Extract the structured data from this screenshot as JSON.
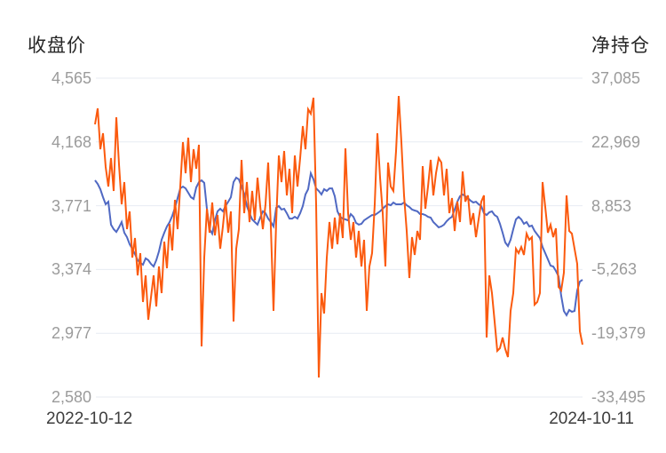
{
  "colors": {
    "price_line": "#5069c3",
    "net_position_line": "#fb5a0e",
    "grid_line": "#e7ebf2",
    "tick_text": "#9b9b9b",
    "date_text": "#3d3d3d",
    "title_text": "#262626",
    "background": "#ffffff"
  },
  "chart_data": {
    "type": "line",
    "legend": "none",
    "grid": "horizontal-only",
    "left_axis": {
      "title": "收盘价",
      "max": 4565,
      "min": 2580,
      "tick_labels": [
        "4,565",
        "4,168",
        "3,771",
        "3,374",
        "2,977",
        "2,580"
      ]
    },
    "right_axis": {
      "title": "净持仓",
      "max": 37085,
      "min": -33495,
      "tick_labels": [
        "37,085",
        "22,969",
        "8,853",
        "-5,263",
        "-19,379",
        "-33,495"
      ]
    },
    "x_axis": {
      "start": "2022-10-12",
      "end": "2024-10-11"
    },
    "series": [
      {
        "name": "收盘价",
        "axis": "left",
        "color_key": "price_line",
        "values": [
          3929,
          3907,
          3874,
          3824,
          3780,
          3796,
          3653,
          3625,
          3608,
          3636,
          3669,
          3603,
          3575,
          3531,
          3503,
          3470,
          3432,
          3415,
          3404,
          3443,
          3432,
          3409,
          3393,
          3432,
          3487,
          3559,
          3603,
          3642,
          3669,
          3708,
          3758,
          3818,
          3879,
          3890,
          3879,
          3852,
          3824,
          3813,
          3885,
          3918,
          3929,
          3913,
          3752,
          3625,
          3597,
          3680,
          3736,
          3752,
          3736,
          3769,
          3796,
          3824,
          3918,
          3946,
          3935,
          3890,
          3846,
          3769,
          3724,
          3686,
          3669,
          3653,
          3697,
          3736,
          3724,
          3691,
          3669,
          3642,
          3758,
          3769,
          3747,
          3752,
          3724,
          3691,
          3691,
          3702,
          3691,
          3724,
          3769,
          3841,
          3874,
          3973,
          3935,
          3879,
          3863,
          3841,
          3874,
          3863,
          3879,
          3879,
          3830,
          3736,
          3702,
          3691,
          3686,
          3680,
          3719,
          3702,
          3664,
          3653,
          3658,
          3680,
          3691,
          3702,
          3713,
          3713,
          3724,
          3736,
          3752,
          3769,
          3780,
          3774,
          3791,
          3780,
          3780,
          3780,
          3791,
          3774,
          3763,
          3747,
          3741,
          3736,
          3719,
          3719,
          3713,
          3702,
          3697,
          3669,
          3653,
          3636,
          3642,
          3653,
          3675,
          3691,
          3702,
          3747,
          3796,
          3830,
          3841,
          3830,
          3818,
          3802,
          3791,
          3796,
          3780,
          3769,
          3724,
          3713,
          3730,
          3736,
          3713,
          3702,
          3658,
          3603,
          3542,
          3520,
          3559,
          3625,
          3686,
          3702,
          3686,
          3658,
          3669,
          3642,
          3647,
          3614,
          3592,
          3570,
          3514,
          3476,
          3437,
          3398,
          3393,
          3365,
          3332,
          3210,
          3116,
          3089,
          3122,
          3111,
          3116,
          3243,
          3299,
          3310
        ]
      },
      {
        "name": "净持仓",
        "axis": "right",
        "color_key": "net_position_line",
        "values": [
          26857,
          30400,
          21357,
          24896,
          17425,
          13100,
          19391,
          12117,
          28434,
          18015,
          9167,
          14083,
          3662,
          7594,
          -2630,
          1696,
          -6563,
          -1647,
          -12461,
          -6563,
          -16393,
          -11478,
          -6563,
          -13444,
          -4597,
          -10495,
          909,
          -4990,
          4842,
          -1057,
          10150,
          3662,
          13100,
          22930,
          16049,
          23913,
          14083,
          21357,
          17032,
          22340,
          -22291,
          -2630,
          8184,
          2876,
          9560,
          2286,
          6807,
          -664,
          4252,
          10150,
          2876,
          7594,
          -16786,
          -664,
          3662,
          18998,
          7200,
          14083,
          5235,
          12117,
          5628,
          15066,
          8774,
          3662,
          9167,
          18408,
          4252,
          -14427,
          5235,
          19981,
          14083,
          20964,
          11133,
          17032,
          7200,
          19981,
          13100,
          19391,
          26464,
          21357,
          30204,
          29221,
          32760,
          9167,
          -29172,
          -10495,
          -15017,
          -2630,
          5235,
          -664,
          6218,
          319,
          7200,
          1696,
          21554,
          7200,
          1302,
          5235,
          -2630,
          3269,
          -4597,
          1302,
          -14427,
          -4597,
          -1647,
          9167,
          24896,
          15066,
          7200,
          -4597,
          18408,
          13100,
          12117,
          20964,
          33153,
          22930,
          11133,
          3269,
          -7153,
          1892,
          -2040,
          3269,
          1302,
          17622,
          8184,
          13100,
          18998,
          11133,
          16049,
          19391,
          18408,
          11133,
          17032,
          7200,
          10543,
          3269,
          9757,
          5235,
          16442,
          9757,
          11133,
          4645,
          7200,
          1892,
          5825,
          9757,
          11133,
          -20325,
          -6563,
          -10495,
          -16786,
          -23274,
          -22684,
          -20325,
          -22881,
          -24650,
          -14427,
          -10495,
          -664,
          -1647,
          -271,
          -2040,
          2679,
          1302,
          1892,
          -13051,
          -12461,
          -10495,
          14083,
          8577,
          2876,
          4645,
          1892,
          3859,
          -9119,
          -9906,
          -5974,
          11133,
          3269,
          2679,
          -664,
          -4007,
          -18949,
          -21898
        ]
      }
    ]
  }
}
